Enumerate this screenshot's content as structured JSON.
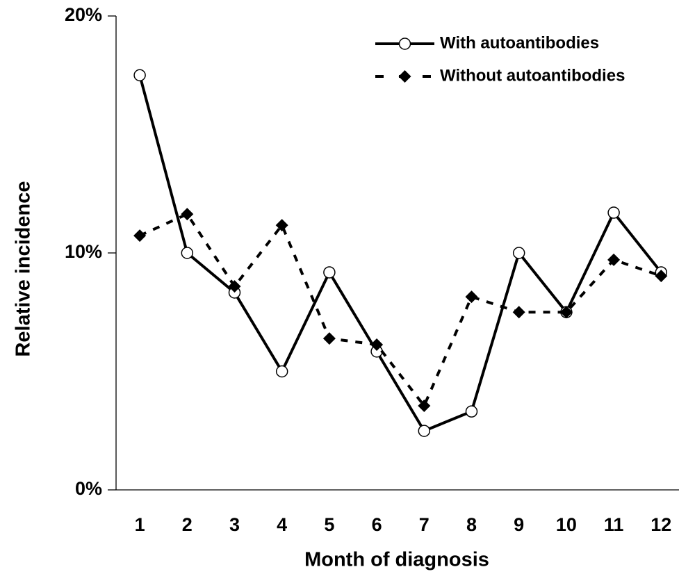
{
  "chart_data": {
    "type": "line",
    "x_label": "Month of diagnosis",
    "y_label": "Relative incidence",
    "categories": [
      "1",
      "2",
      "3",
      "4",
      "5",
      "6",
      "7",
      "8",
      "9",
      "10",
      "11",
      "12"
    ],
    "series": [
      {
        "name": "With autoantibodies",
        "color": "#000000",
        "marker": "open-circle",
        "dash": "solid",
        "values": [
          17.5,
          10.0,
          8.33,
          5.0,
          9.18,
          5.84,
          2.49,
          3.31,
          10.0,
          7.5,
          11.7,
          9.18
        ]
      },
      {
        "name": "Without autoantibodies",
        "color": "#000000",
        "marker": "diamond",
        "dash": "dashed",
        "values": [
          10.73,
          11.64,
          8.59,
          11.17,
          6.39,
          6.13,
          3.55,
          8.15,
          7.5,
          7.5,
          9.71,
          9.03
        ]
      }
    ],
    "ylim": [
      0,
      20
    ],
    "yticks": [
      {
        "value": 0,
        "label": "0%"
      },
      {
        "value": 10,
        "label": "10%"
      },
      {
        "value": 20,
        "label": "20%"
      }
    ],
    "legend": "top-right",
    "grid": false
  }
}
